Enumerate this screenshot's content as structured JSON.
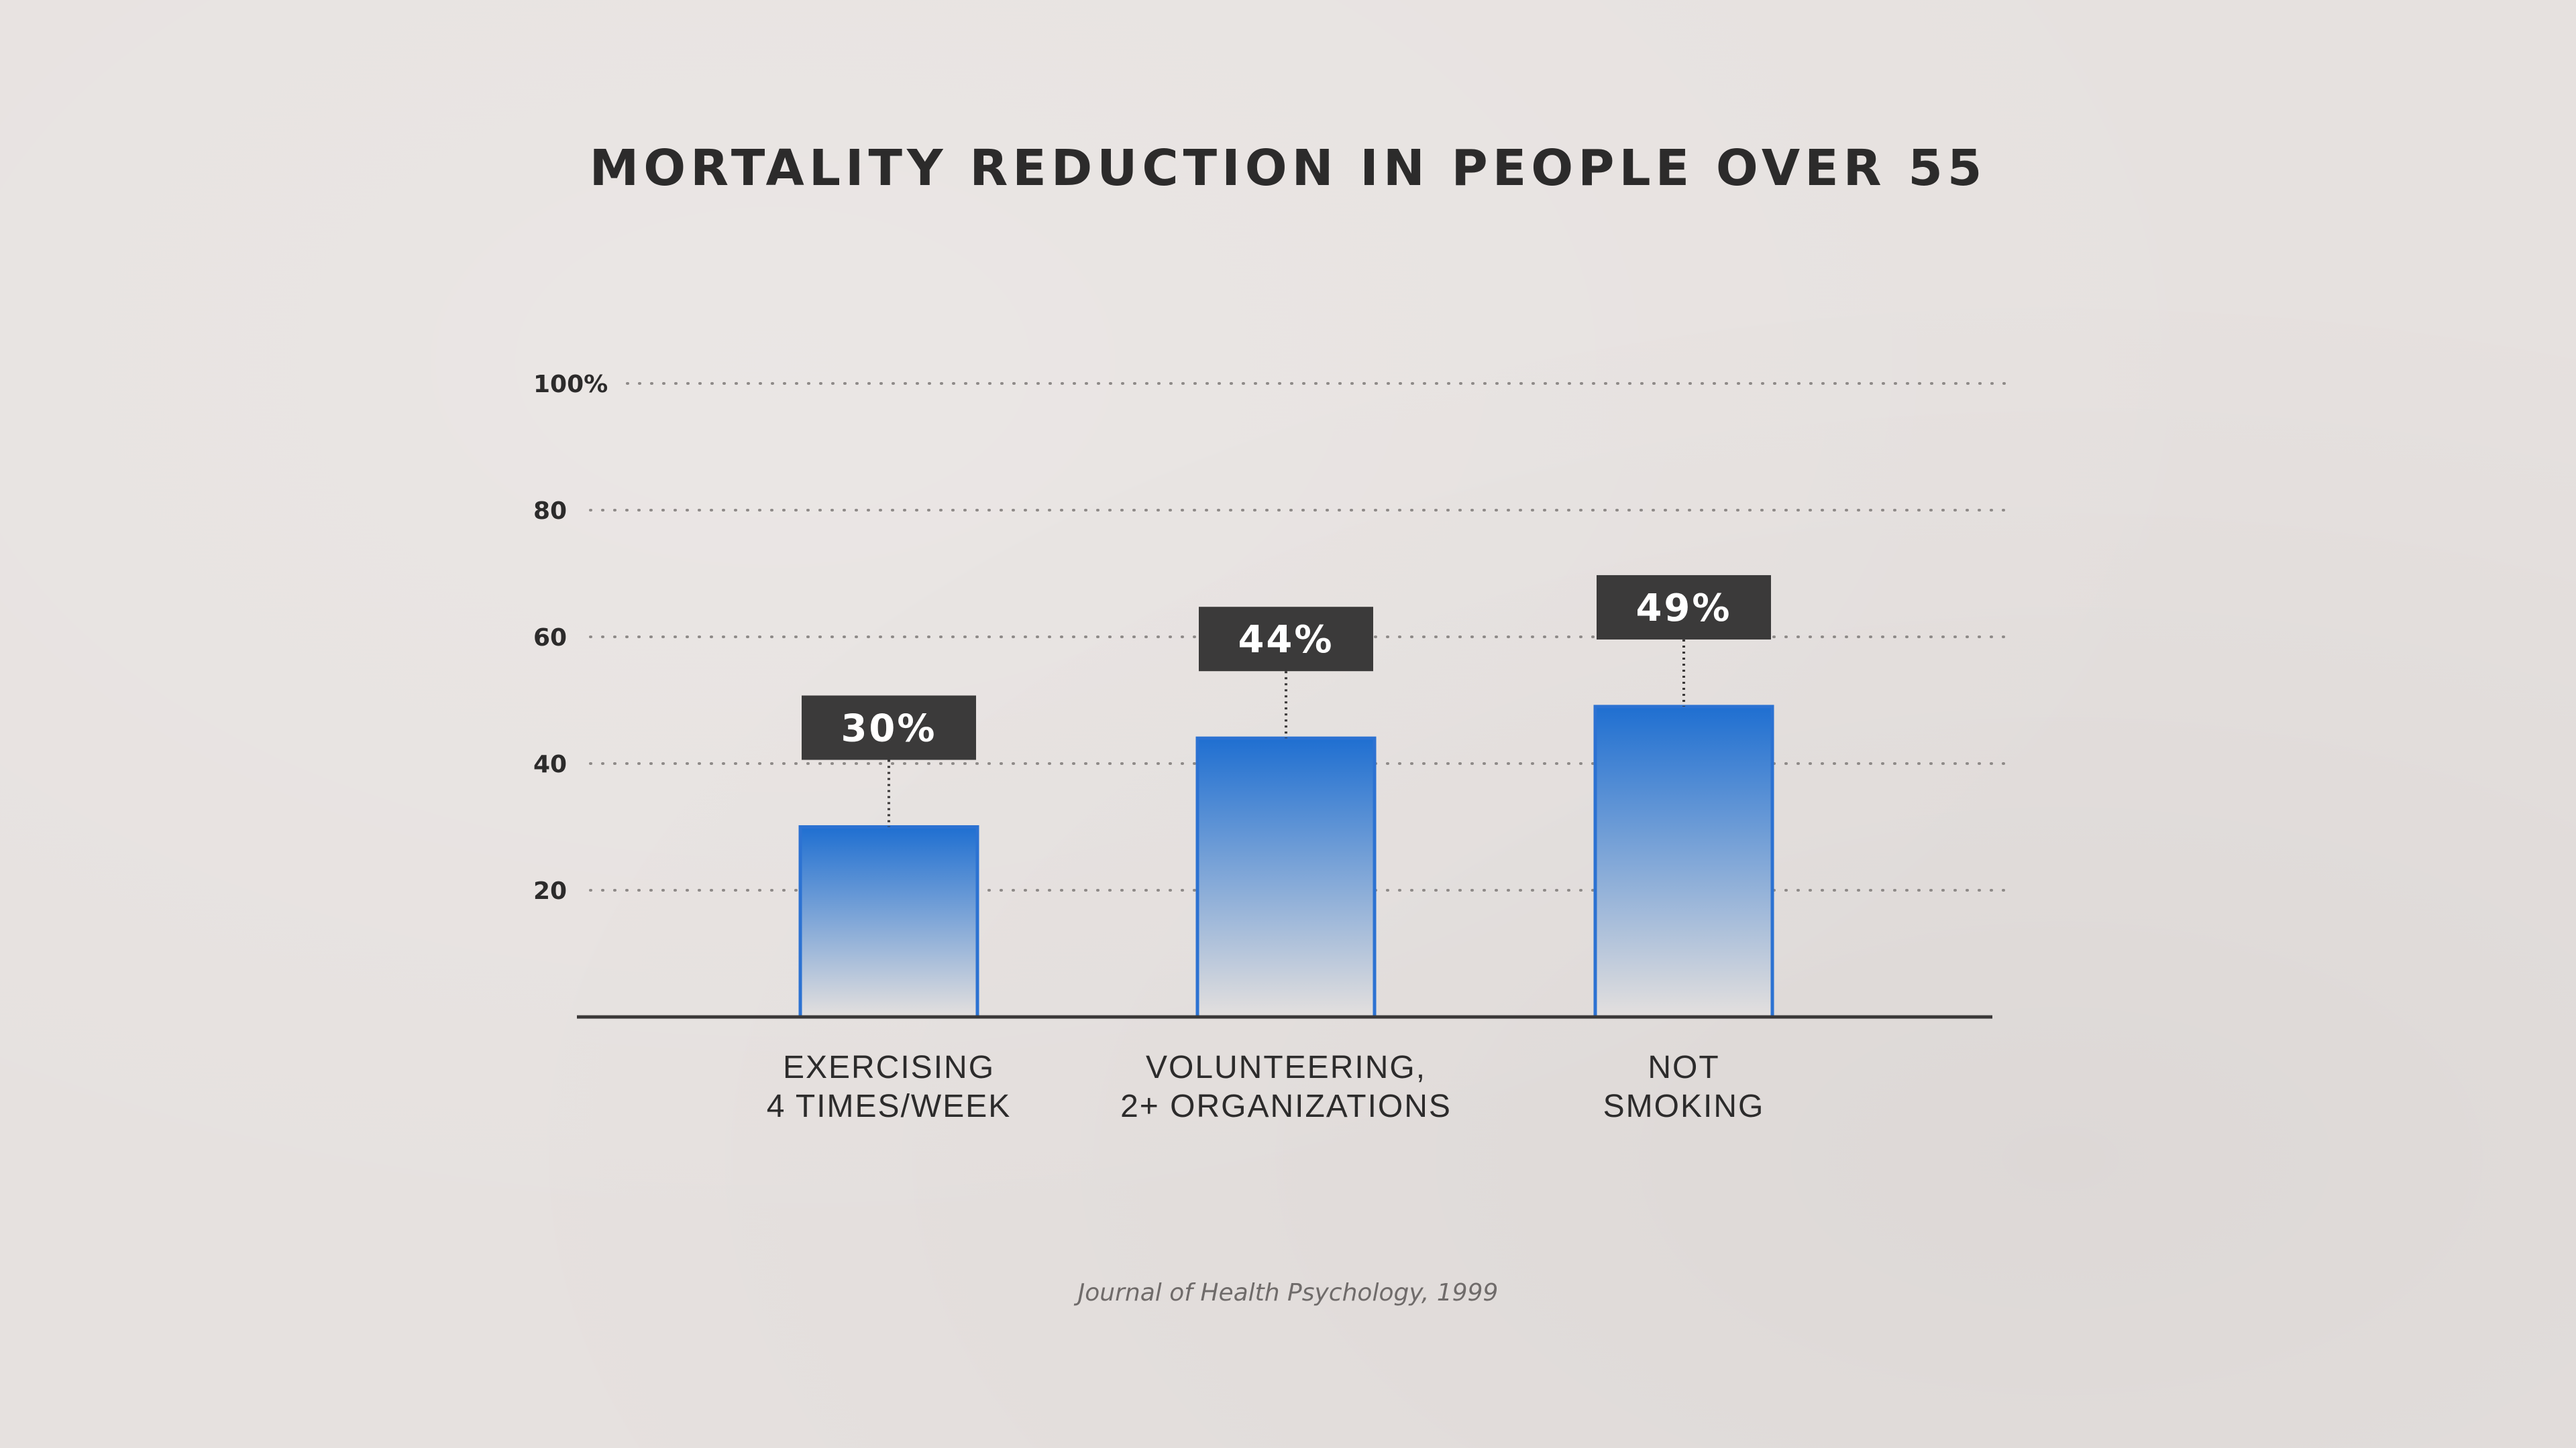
{
  "chart_data": {
    "type": "bar",
    "title": "MORTALITY REDUCTION IN PEOPLE OVER 55",
    "categories": [
      [
        "EXERCISING",
        "4 TIMES/WEEK"
      ],
      [
        "VOLUNTEERING,",
        "2+ ORGANIZATIONS"
      ],
      [
        "NOT",
        "SMOKING"
      ]
    ],
    "values": [
      30,
      44,
      49
    ],
    "data_labels": [
      "30%",
      "44%",
      "49%"
    ],
    "yticks": [
      "20",
      "40",
      "60",
      "80",
      "100%"
    ],
    "ytick_values": [
      20,
      40,
      60,
      80,
      100
    ],
    "ylim": [
      0,
      100
    ],
    "grid": "dotted horizontal",
    "xlabel": "",
    "ylabel": "",
    "colors": {
      "bar_top": "#1f6fd1",
      "bar_bottom": "#e4e0de",
      "bar_edge": "#2c72d2",
      "label_box": "#3b3a3a",
      "label_text": "#ffffff",
      "grid": "#8e8a88",
      "axis": "#3a3838",
      "text": "#2c2b2b"
    }
  },
  "source": "Journal of Health Psychology, 1999"
}
